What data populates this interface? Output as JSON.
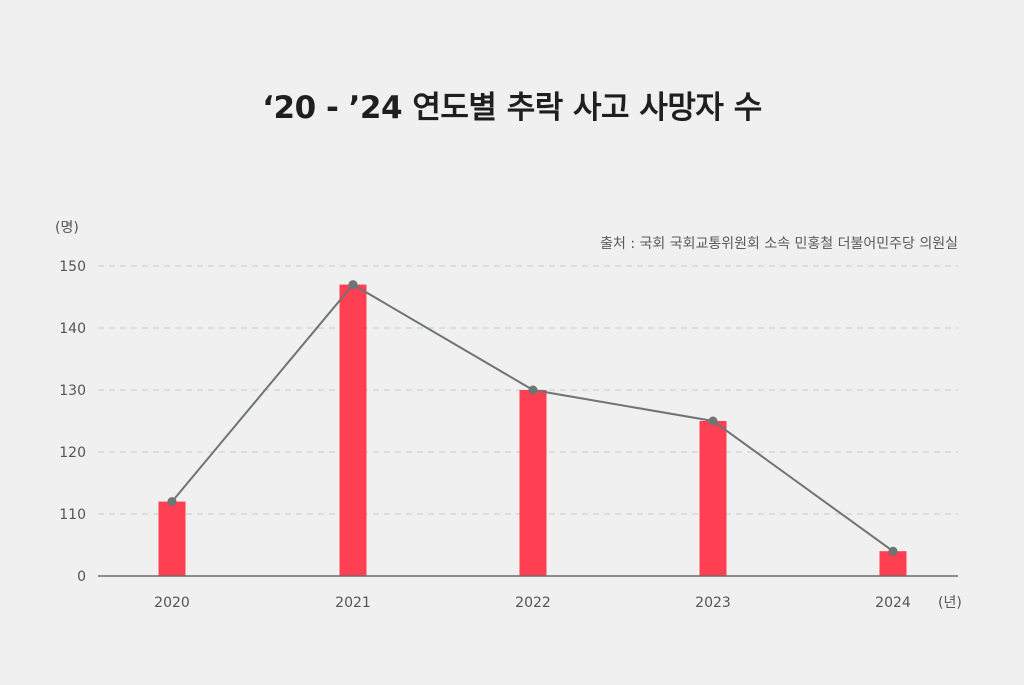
{
  "chart_data": {
    "type": "bar",
    "title": "‘20 - ’24 연도별 추락 사고 사망자 수",
    "source": "출처 : 국회 국회교통위원회 소속 민홍철 더불어민주당 의원실",
    "ylabel_unit": "(명)",
    "xlabel_unit": "(년)",
    "categories": [
      "2020",
      "2021",
      "2022",
      "2023",
      "2024"
    ],
    "values": [
      112,
      147,
      130,
      125,
      104
    ],
    "line_overlay": true,
    "y_ticks": [
      "150",
      "140",
      "130",
      "120",
      "110",
      "0"
    ],
    "y_tick_values": [
      150,
      140,
      130,
      120,
      110,
      0
    ],
    "axis_break": {
      "display_min": 100,
      "label": "0"
    },
    "ylim": [
      100,
      150
    ],
    "grid": "dashed horizontal",
    "colors": {
      "bar": "#ff3f52",
      "line": "#6e7575",
      "grid": "#c9cccb",
      "axis": "#6b6b6b",
      "tick_text": "#555555"
    }
  }
}
